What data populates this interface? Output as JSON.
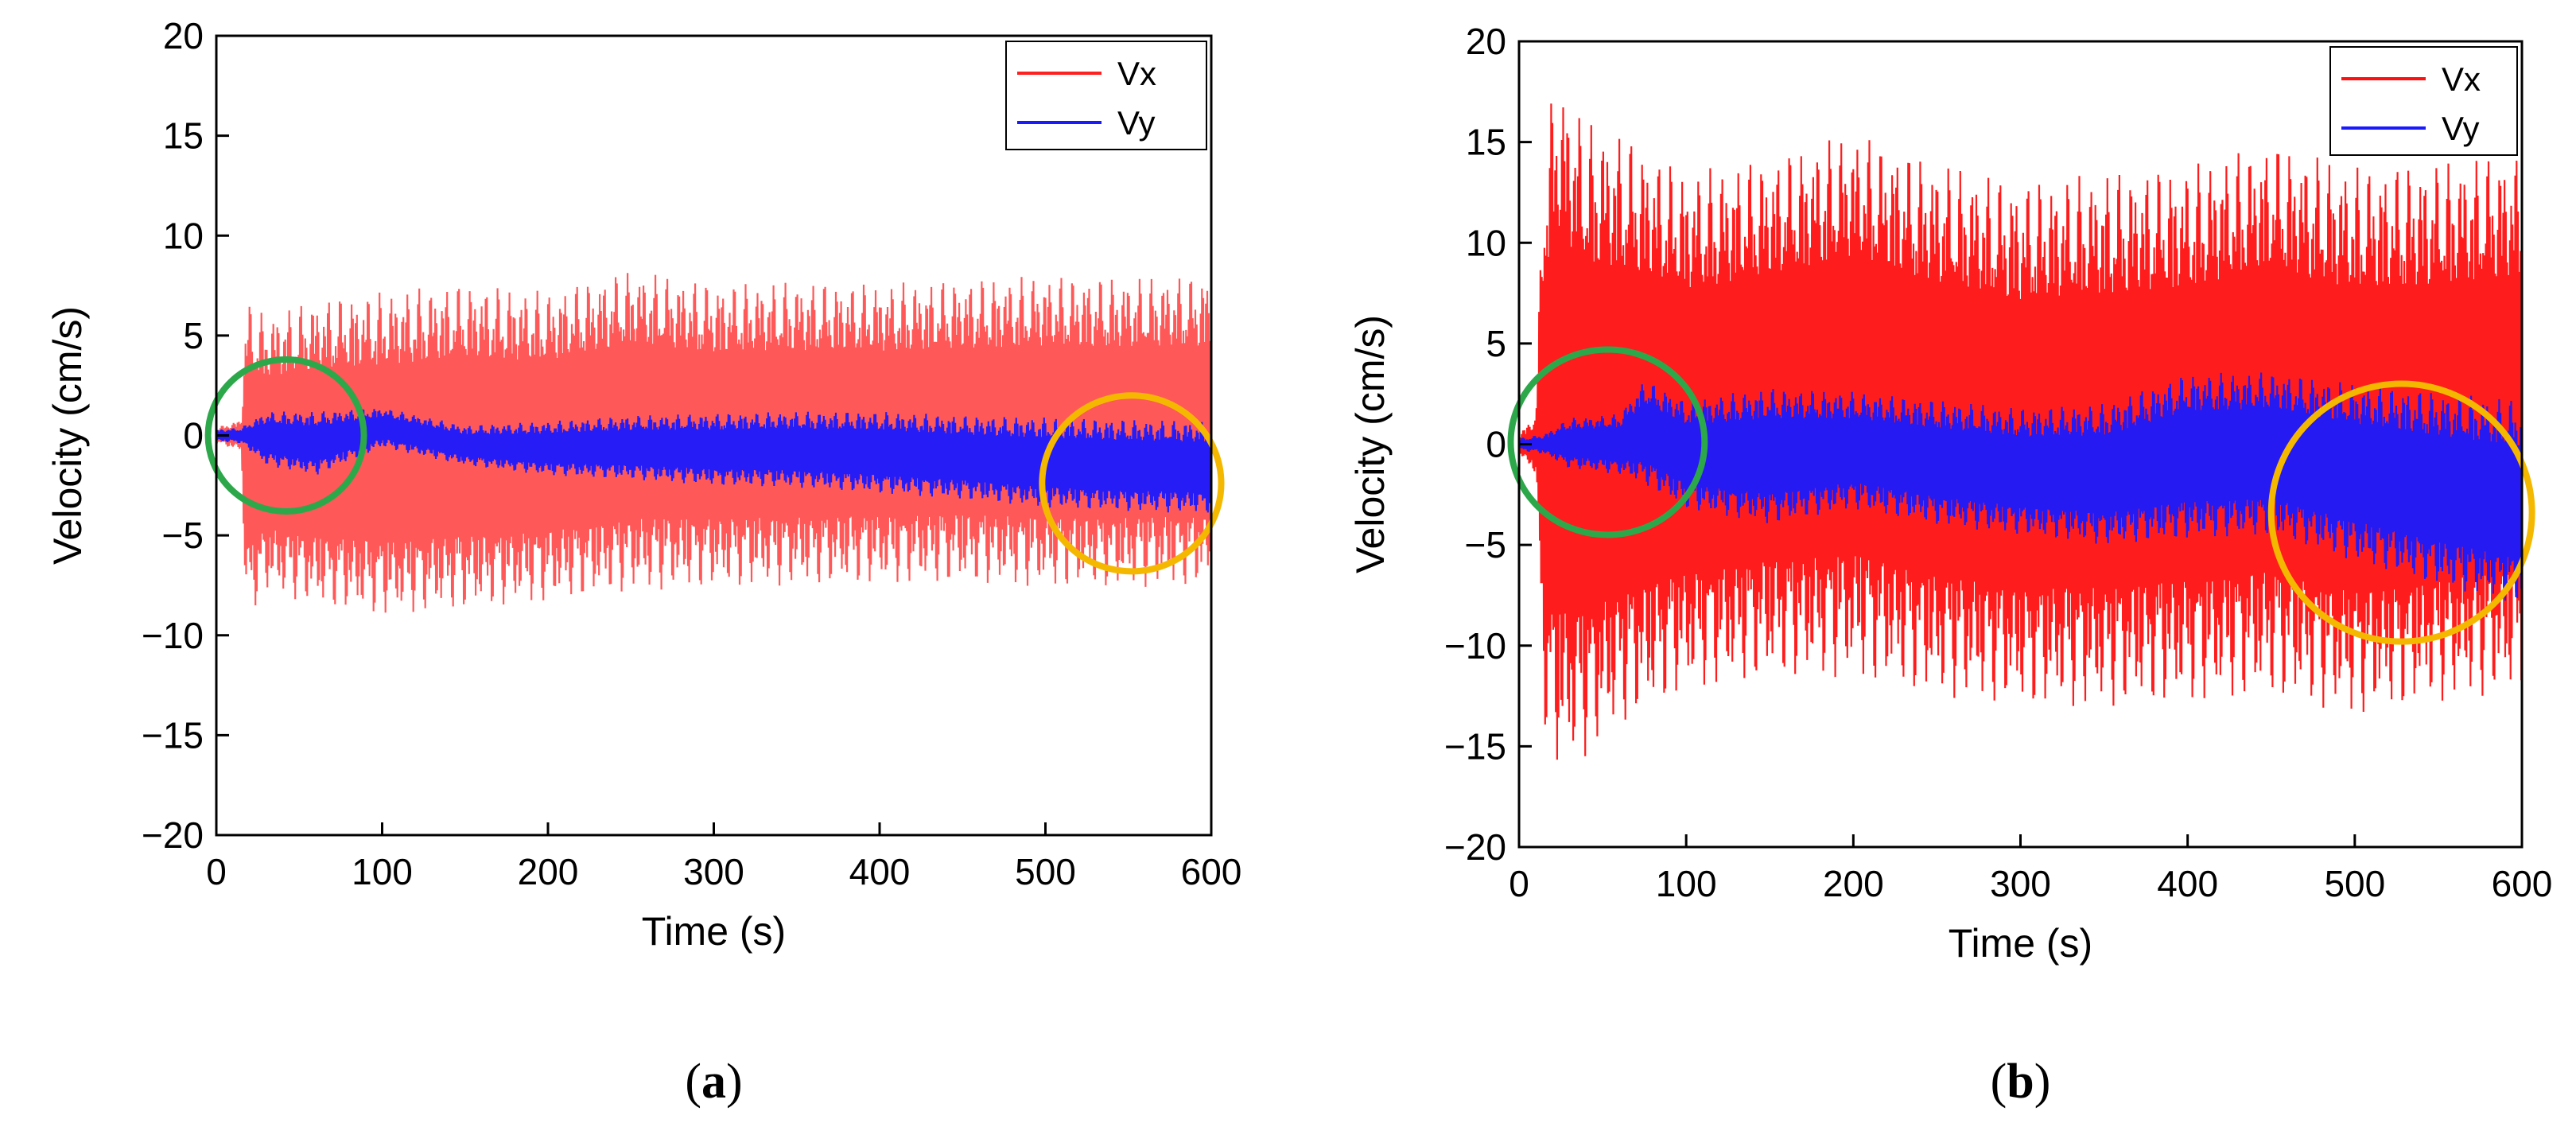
{
  "chart_data": [
    {
      "type": "line",
      "panel": "a",
      "panel_label_open": "(",
      "panel_label_letter": "a",
      "panel_label_close": ")",
      "xlabel": "Time (s)",
      "ylabel": "Velocity (cm/s)",
      "xlim": [
        0,
        600
      ],
      "ylim": [
        -20,
        20
      ],
      "xticks": [
        0,
        100,
        200,
        300,
        400,
        500,
        600
      ],
      "yticks": [
        -20,
        -15,
        -10,
        -5,
        0,
        5,
        10,
        15,
        20
      ],
      "xtick_labels": [
        "0",
        "100",
        "200",
        "300",
        "400",
        "500",
        "600"
      ],
      "ytick_labels": [
        "−20",
        "−15",
        "−10",
        "−5",
        "0",
        "5",
        "10",
        "15",
        "20"
      ],
      "series": [
        {
          "name": "Vx",
          "color": "#ff2020",
          "envelope_t": [
            0,
            15,
            18,
            30,
            60,
            100,
            150,
            200,
            250,
            300,
            350,
            400,
            450,
            500,
            550,
            600
          ],
          "upper": [
            0.4,
            0.8,
            6.8,
            6.0,
            6.8,
            7.2,
            7.6,
            7.2,
            8.3,
            7.6,
            7.7,
            7.6,
            7.8,
            8.0,
            7.9,
            8.0
          ],
          "lower": [
            -0.4,
            -0.8,
            -9.2,
            -7.8,
            -8.5,
            -9.0,
            -8.7,
            -8.3,
            -7.8,
            -7.6,
            -7.5,
            -7.4,
            -7.4,
            -7.6,
            -7.6,
            -7.5
          ]
        },
        {
          "name": "Vy",
          "color": "#1a1aff",
          "envelope_t": [
            0,
            15,
            30,
            60,
            100,
            150,
            200,
            250,
            300,
            350,
            400,
            450,
            500,
            550,
            600
          ],
          "upper": [
            0.3,
            0.4,
            1.2,
            1.2,
            1.4,
            0.5,
            0.7,
            1.0,
            1.1,
            1.2,
            1.2,
            1.0,
            0.9,
            0.8,
            0.7
          ],
          "lower": [
            -0.3,
            -0.4,
            -1.5,
            -2.0,
            -0.6,
            -1.5,
            -2.0,
            -2.2,
            -2.5,
            -2.6,
            -2.9,
            -3.2,
            -3.6,
            -3.8,
            -3.9
          ]
        }
      ],
      "annotations": [
        {
          "shape": "ellipse",
          "color": "#2ca84a",
          "x_center": 42,
          "y_center": 0,
          "x_radius": 47,
          "y_radius": 3.8
        },
        {
          "shape": "ellipse",
          "color": "#f5b800",
          "x_center": 552,
          "y_center": -2.4,
          "x_radius": 54,
          "y_radius": 4.4
        }
      ],
      "legend": {
        "position": "top-right",
        "entries": [
          "Vx",
          "Vy"
        ]
      }
    },
    {
      "type": "line",
      "panel": "b",
      "panel_label_open": "(",
      "panel_label_letter": "b",
      "panel_label_close": ")",
      "xlabel": "Time (s)",
      "ylabel": "Velocity (cm/s)",
      "xlim": [
        0,
        600
      ],
      "ylim": [
        -20,
        20
      ],
      "xticks": [
        0,
        100,
        200,
        300,
        400,
        500,
        600
      ],
      "yticks": [
        -20,
        -15,
        -10,
        -5,
        0,
        5,
        10,
        15,
        20
      ],
      "xtick_labels": [
        "0",
        "100",
        "200",
        "300",
        "400",
        "500",
        "600"
      ],
      "ytick_labels": [
        "−20",
        "−15",
        "−10",
        "−5",
        "0",
        "5",
        "10",
        "15",
        "20"
      ],
      "series": [
        {
          "name": "Vx",
          "color": "#ff1010",
          "envelope_t": [
            0,
            10,
            15,
            22,
            40,
            60,
            100,
            150,
            200,
            250,
            300,
            350,
            400,
            450,
            500,
            550,
            600
          ],
          "upper": [
            0.5,
            1.5,
            15.0,
            18.5,
            16.0,
            15.5,
            13.5,
            14.2,
            15.5,
            14.0,
            13.0,
            13.5,
            13.8,
            15.0,
            13.8,
            14.0,
            14.5
          ],
          "lower": [
            -0.5,
            -1.5,
            -14.0,
            -16.2,
            -15.5,
            -14.0,
            -12.2,
            -11.6,
            -11.6,
            -12.5,
            -13.0,
            -13.1,
            -12.8,
            -12.5,
            -13.5,
            -12.8,
            -12.3
          ]
        },
        {
          "name": "Vy",
          "color": "#1a1aff",
          "envelope_t": [
            0,
            15,
            30,
            60,
            75,
            100,
            150,
            200,
            250,
            300,
            350,
            400,
            450,
            500,
            550,
            600
          ],
          "upper": [
            0.3,
            0.5,
            1.3,
            1.5,
            3.2,
            2.2,
            2.8,
            2.6,
            2.2,
            1.8,
            2.0,
            3.5,
            3.6,
            3.0,
            2.6,
            2.2
          ],
          "lower": [
            -0.3,
            -0.5,
            -1.2,
            -1.5,
            -2.0,
            -3.2,
            -4.0,
            -3.2,
            -4.0,
            -4.5,
            -5.0,
            -4.7,
            -4.5,
            -5.8,
            -7.0,
            -8.0
          ]
        }
      ],
      "annotations": [
        {
          "shape": "ellipse",
          "color": "#2ca84a",
          "x_center": 53,
          "y_center": 0.1,
          "x_radius": 58,
          "y_radius": 4.6
        },
        {
          "shape": "ellipse",
          "color": "#f5b800",
          "x_center": 528,
          "y_center": -3.4,
          "x_radius": 78,
          "y_radius": 6.4
        }
      ],
      "legend": {
        "position": "top-right",
        "entries": [
          "Vx",
          "Vy"
        ]
      }
    }
  ]
}
